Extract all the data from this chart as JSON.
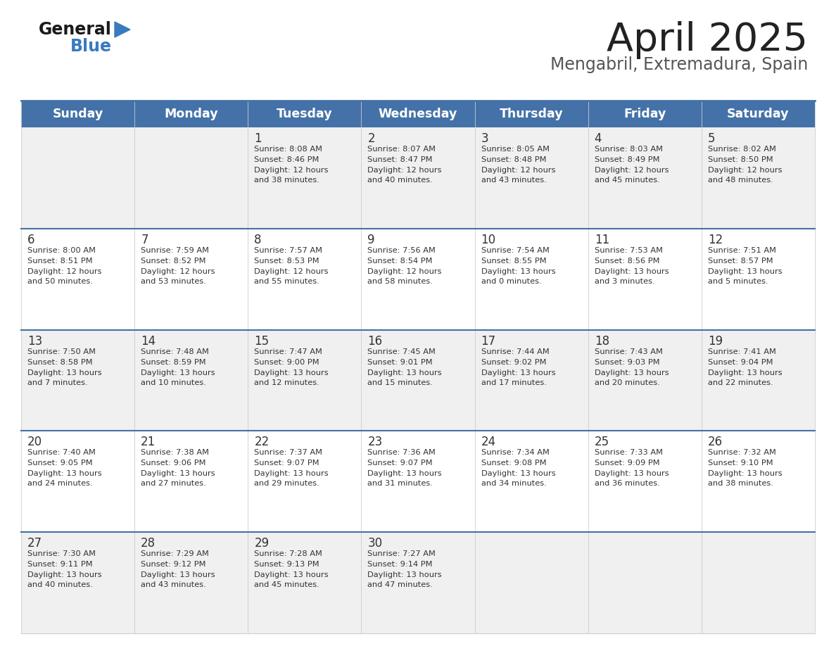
{
  "title": "April 2025",
  "subtitle": "Mengabril, Extremadura, Spain",
  "days_of_week": [
    "Sunday",
    "Monday",
    "Tuesday",
    "Wednesday",
    "Thursday",
    "Friday",
    "Saturday"
  ],
  "header_bg": "#4472a8",
  "header_text": "#ffffff",
  "row_bg_odd": "#f0f0f0",
  "row_bg_even": "#ffffff",
  "divider_color": "#4472a8",
  "text_color": "#333333",
  "title_color": "#222222",
  "subtitle_color": "#555555",
  "logo_general_color": "#1a1a1a",
  "logo_blue_color": "#3a7abf",
  "cell_border_color": "#cccccc",
  "weeks": [
    [
      {
        "day": "",
        "sunrise": "",
        "sunset": "",
        "daylight": ""
      },
      {
        "day": "",
        "sunrise": "",
        "sunset": "",
        "daylight": ""
      },
      {
        "day": "1",
        "sunrise": "Sunrise: 8:08 AM",
        "sunset": "Sunset: 8:46 PM",
        "daylight": "Daylight: 12 hours\nand 38 minutes."
      },
      {
        "day": "2",
        "sunrise": "Sunrise: 8:07 AM",
        "sunset": "Sunset: 8:47 PM",
        "daylight": "Daylight: 12 hours\nand 40 minutes."
      },
      {
        "day": "3",
        "sunrise": "Sunrise: 8:05 AM",
        "sunset": "Sunset: 8:48 PM",
        "daylight": "Daylight: 12 hours\nand 43 minutes."
      },
      {
        "day": "4",
        "sunrise": "Sunrise: 8:03 AM",
        "sunset": "Sunset: 8:49 PM",
        "daylight": "Daylight: 12 hours\nand 45 minutes."
      },
      {
        "day": "5",
        "sunrise": "Sunrise: 8:02 AM",
        "sunset": "Sunset: 8:50 PM",
        "daylight": "Daylight: 12 hours\nand 48 minutes."
      }
    ],
    [
      {
        "day": "6",
        "sunrise": "Sunrise: 8:00 AM",
        "sunset": "Sunset: 8:51 PM",
        "daylight": "Daylight: 12 hours\nand 50 minutes."
      },
      {
        "day": "7",
        "sunrise": "Sunrise: 7:59 AM",
        "sunset": "Sunset: 8:52 PM",
        "daylight": "Daylight: 12 hours\nand 53 minutes."
      },
      {
        "day": "8",
        "sunrise": "Sunrise: 7:57 AM",
        "sunset": "Sunset: 8:53 PM",
        "daylight": "Daylight: 12 hours\nand 55 minutes."
      },
      {
        "day": "9",
        "sunrise": "Sunrise: 7:56 AM",
        "sunset": "Sunset: 8:54 PM",
        "daylight": "Daylight: 12 hours\nand 58 minutes."
      },
      {
        "day": "10",
        "sunrise": "Sunrise: 7:54 AM",
        "sunset": "Sunset: 8:55 PM",
        "daylight": "Daylight: 13 hours\nand 0 minutes."
      },
      {
        "day": "11",
        "sunrise": "Sunrise: 7:53 AM",
        "sunset": "Sunset: 8:56 PM",
        "daylight": "Daylight: 13 hours\nand 3 minutes."
      },
      {
        "day": "12",
        "sunrise": "Sunrise: 7:51 AM",
        "sunset": "Sunset: 8:57 PM",
        "daylight": "Daylight: 13 hours\nand 5 minutes."
      }
    ],
    [
      {
        "day": "13",
        "sunrise": "Sunrise: 7:50 AM",
        "sunset": "Sunset: 8:58 PM",
        "daylight": "Daylight: 13 hours\nand 7 minutes."
      },
      {
        "day": "14",
        "sunrise": "Sunrise: 7:48 AM",
        "sunset": "Sunset: 8:59 PM",
        "daylight": "Daylight: 13 hours\nand 10 minutes."
      },
      {
        "day": "15",
        "sunrise": "Sunrise: 7:47 AM",
        "sunset": "Sunset: 9:00 PM",
        "daylight": "Daylight: 13 hours\nand 12 minutes."
      },
      {
        "day": "16",
        "sunrise": "Sunrise: 7:45 AM",
        "sunset": "Sunset: 9:01 PM",
        "daylight": "Daylight: 13 hours\nand 15 minutes."
      },
      {
        "day": "17",
        "sunrise": "Sunrise: 7:44 AM",
        "sunset": "Sunset: 9:02 PM",
        "daylight": "Daylight: 13 hours\nand 17 minutes."
      },
      {
        "day": "18",
        "sunrise": "Sunrise: 7:43 AM",
        "sunset": "Sunset: 9:03 PM",
        "daylight": "Daylight: 13 hours\nand 20 minutes."
      },
      {
        "day": "19",
        "sunrise": "Sunrise: 7:41 AM",
        "sunset": "Sunset: 9:04 PM",
        "daylight": "Daylight: 13 hours\nand 22 minutes."
      }
    ],
    [
      {
        "day": "20",
        "sunrise": "Sunrise: 7:40 AM",
        "sunset": "Sunset: 9:05 PM",
        "daylight": "Daylight: 13 hours\nand 24 minutes."
      },
      {
        "day": "21",
        "sunrise": "Sunrise: 7:38 AM",
        "sunset": "Sunset: 9:06 PM",
        "daylight": "Daylight: 13 hours\nand 27 minutes."
      },
      {
        "day": "22",
        "sunrise": "Sunrise: 7:37 AM",
        "sunset": "Sunset: 9:07 PM",
        "daylight": "Daylight: 13 hours\nand 29 minutes."
      },
      {
        "day": "23",
        "sunrise": "Sunrise: 7:36 AM",
        "sunset": "Sunset: 9:07 PM",
        "daylight": "Daylight: 13 hours\nand 31 minutes."
      },
      {
        "day": "24",
        "sunrise": "Sunrise: 7:34 AM",
        "sunset": "Sunset: 9:08 PM",
        "daylight": "Daylight: 13 hours\nand 34 minutes."
      },
      {
        "day": "25",
        "sunrise": "Sunrise: 7:33 AM",
        "sunset": "Sunset: 9:09 PM",
        "daylight": "Daylight: 13 hours\nand 36 minutes."
      },
      {
        "day": "26",
        "sunrise": "Sunrise: 7:32 AM",
        "sunset": "Sunset: 9:10 PM",
        "daylight": "Daylight: 13 hours\nand 38 minutes."
      }
    ],
    [
      {
        "day": "27",
        "sunrise": "Sunrise: 7:30 AM",
        "sunset": "Sunset: 9:11 PM",
        "daylight": "Daylight: 13 hours\nand 40 minutes."
      },
      {
        "day": "28",
        "sunrise": "Sunrise: 7:29 AM",
        "sunset": "Sunset: 9:12 PM",
        "daylight": "Daylight: 13 hours\nand 43 minutes."
      },
      {
        "day": "29",
        "sunrise": "Sunrise: 7:28 AM",
        "sunset": "Sunset: 9:13 PM",
        "daylight": "Daylight: 13 hours\nand 45 minutes."
      },
      {
        "day": "30",
        "sunrise": "Sunrise: 7:27 AM",
        "sunset": "Sunset: 9:14 PM",
        "daylight": "Daylight: 13 hours\nand 47 minutes."
      },
      {
        "day": "",
        "sunrise": "",
        "sunset": "",
        "daylight": ""
      },
      {
        "day": "",
        "sunrise": "",
        "sunset": "",
        "daylight": ""
      },
      {
        "day": "",
        "sunrise": "",
        "sunset": "",
        "daylight": ""
      }
    ]
  ]
}
